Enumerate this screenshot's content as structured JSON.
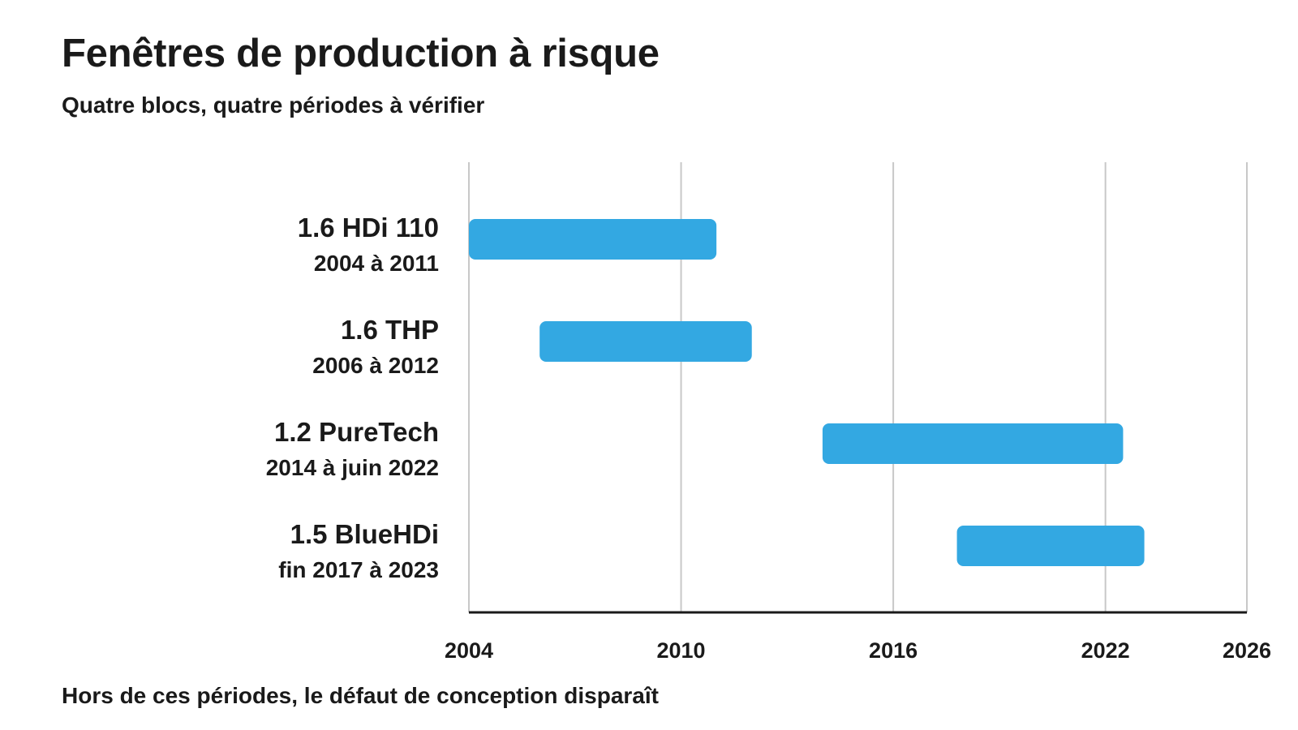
{
  "chart_data": {
    "type": "bar",
    "orientation": "horizontal-range",
    "title": "Fenêtres de production à risque",
    "subtitle": "Quatre blocs, quatre périodes à vérifier",
    "footnote": "Hors de ces périodes, le défaut de conception disparaît",
    "xlabel": "",
    "ylabel": "",
    "xlim": [
      2004,
      2026
    ],
    "x_ticks": [
      2004,
      2010,
      2016,
      2022,
      2026
    ],
    "grid": "vertical",
    "bar_color": "#33a8e2",
    "categories": [
      {
        "name": "1.6 HDi 110",
        "period": "2004 à 2011",
        "start": 2004.0,
        "end": 2011.0
      },
      {
        "name": "1.6 THP",
        "period": "2006 à 2012",
        "start": 2006.0,
        "end": 2012.0
      },
      {
        "name": "1.2 PureTech",
        "period": "2014 à juin 2022",
        "start": 2014.0,
        "end": 2022.5
      },
      {
        "name": "1.5 BlueHDi",
        "period": "fin 2017 à 2023",
        "start": 2017.8,
        "end": 2023.1
      }
    ]
  }
}
